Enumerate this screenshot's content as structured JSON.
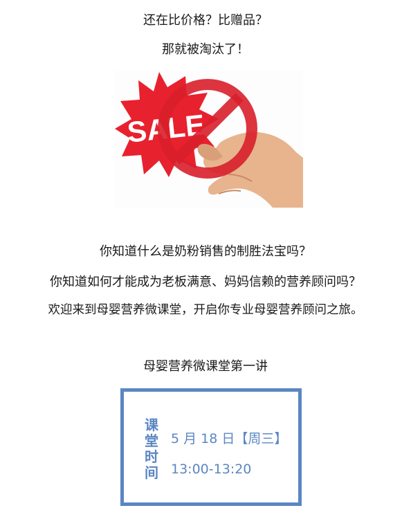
{
  "intro": {
    "line1": "还在比价格？比赠品？",
    "line2": "那就被淘汰了！"
  },
  "figure": {
    "sign_text": "SALE",
    "icon": "no-sale-sign-in-hand",
    "colors": {
      "burst": "#e8212e",
      "prohibit": "#d81f2b",
      "skin": "#e7b48e"
    }
  },
  "questions": {
    "line1": "你知道什么是奶粉销售的制胜法宝吗？",
    "line2": "你知道如何才能成为老板满意、妈妈信赖的营养顾问吗？",
    "line3": "欢迎来到母婴营养微课堂，开启你专业母婴营养顾问之旅。"
  },
  "lecture": {
    "title": "母婴营养微课堂第一讲"
  },
  "schedule": {
    "label_chars": [
      "课",
      "堂",
      "时",
      "间"
    ],
    "date": "5 月 18 日【周三】",
    "time": "13:00-13:20",
    "accent_color": "#5b86c2"
  }
}
